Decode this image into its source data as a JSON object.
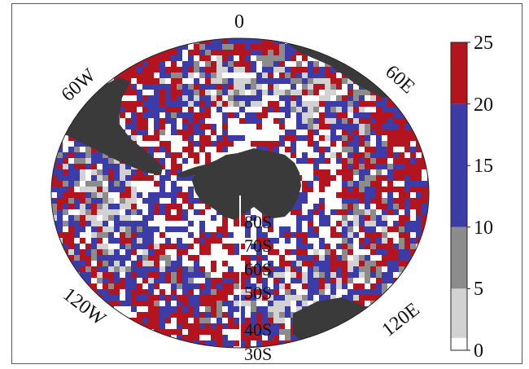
{
  "map": {
    "projection": "south-polar-stereographic",
    "longitude_labels": {
      "top": "0",
      "upper_left": "60W",
      "upper_right": "60E",
      "lower_left": "120W",
      "lower_right": "120E"
    },
    "latitude_labels": [
      "80S",
      "70S",
      "60S",
      "50S",
      "40S",
      "30S"
    ],
    "land_color": "#3a3a3a",
    "ocean_background": "#ffffff"
  },
  "colorbar": {
    "ticks": [
      "25",
      "20",
      "15",
      "10",
      "5",
      "0"
    ],
    "bands": [
      {
        "from": 20,
        "to": 25,
        "color": "#b4141e"
      },
      {
        "from": 10,
        "to": 20,
        "color": "#3c3ca8"
      },
      {
        "from": 5,
        "to": 10,
        "color": "#8c8c8c"
      },
      {
        "from": 1,
        "to": 5,
        "color": "#d2d2d2"
      },
      {
        "from": 0,
        "to": 1,
        "color": "#ffffff"
      }
    ]
  }
}
